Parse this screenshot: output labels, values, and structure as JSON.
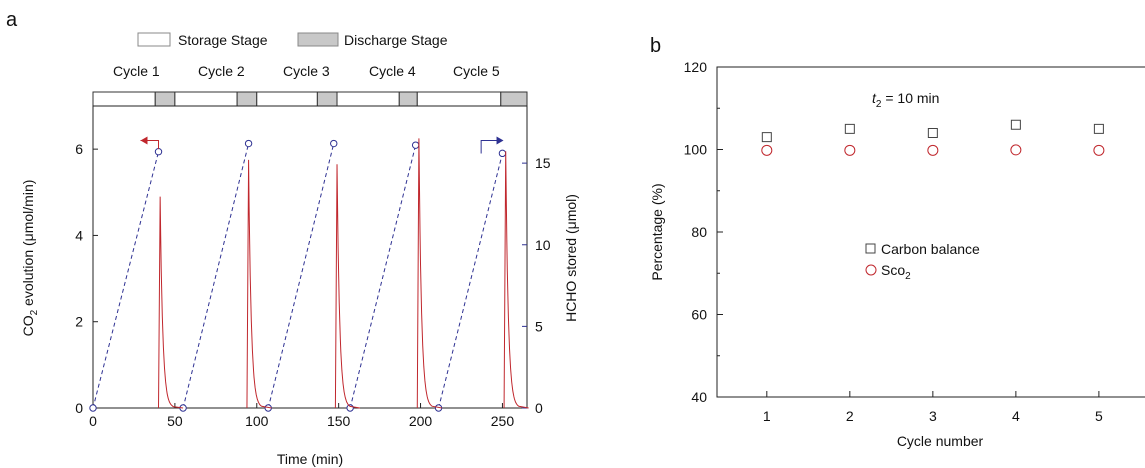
{
  "chart_data": [
    {
      "panel_label": "a",
      "type": "line",
      "xlabel": "Time (min)",
      "ylabel_left": {
        "pre": "CO",
        "sub": "2",
        "post": " evolution (μmol/min)"
      },
      "ylabel_right": "HCHO stored (μmol)",
      "xlim": [
        0,
        265
      ],
      "ylim_left": [
        0,
        7
      ],
      "ylim_right": [
        0,
        18.5
      ],
      "xticks": [
        0,
        50,
        100,
        150,
        200,
        250
      ],
      "yticks_left": [
        0,
        2,
        4,
        6
      ],
      "yticks_right": [
        0,
        5,
        10,
        15
      ],
      "legend": {
        "storage_label": "Storage Stage",
        "discharge_label": "Discharge Stage"
      },
      "cycle_labels": [
        "Cycle 1",
        "Cycle 2",
        "Cycle 3",
        "Cycle 4",
        "Cycle 5"
      ],
      "stages": [
        {
          "kind": "storage",
          "start": 0,
          "end": 38
        },
        {
          "kind": "discharge",
          "start": 38,
          "end": 50
        },
        {
          "kind": "storage",
          "start": 50,
          "end": 88
        },
        {
          "kind": "discharge",
          "start": 88,
          "end": 100
        },
        {
          "kind": "storage",
          "start": 100,
          "end": 137
        },
        {
          "kind": "discharge",
          "start": 137,
          "end": 149
        },
        {
          "kind": "storage",
          "start": 149,
          "end": 187
        },
        {
          "kind": "discharge",
          "start": 187,
          "end": 198
        },
        {
          "kind": "storage",
          "start": 198,
          "end": 249
        },
        {
          "kind": "discharge",
          "start": 249,
          "end": 265
        }
      ],
      "co2_peaks": [
        {
          "t": 41,
          "peak": 4.9,
          "end": 49
        },
        {
          "t": 95,
          "peak": 5.75,
          "end": 103
        },
        {
          "t": 149,
          "peak": 5.65,
          "end": 157
        },
        {
          "t": 199,
          "peak": 6.25,
          "end": 207
        },
        {
          "t": 252,
          "peak": 5.95,
          "end": 260
        }
      ],
      "hcho_series": {
        "name": "HCHO stored",
        "points": [
          [
            0,
            0
          ],
          [
            40,
            15.7
          ],
          [
            55,
            0
          ],
          [
            95,
            16.2
          ],
          [
            107,
            0
          ],
          [
            147,
            16.2
          ],
          [
            157,
            0
          ],
          [
            197,
            16.1
          ],
          [
            211,
            0
          ],
          [
            250,
            15.6
          ]
        ]
      },
      "colors": {
        "co2": "#c0272d",
        "hcho": "#2e3192",
        "discharge_fill": "#c8c8c8"
      }
    },
    {
      "panel_label": "b",
      "type": "scatter",
      "xlabel": "Cycle number",
      "ylabel": "Percentage (%)",
      "xlim": [
        0.4,
        5.7
      ],
      "ylim": [
        40,
        120
      ],
      "xticks": [
        1,
        2,
        3,
        4,
        5
      ],
      "yticks": [
        40,
        60,
        80,
        100,
        120
      ],
      "annotation": {
        "var": "t",
        "sub": "2",
        "rest": " = 10 min"
      },
      "x": [
        1,
        2,
        3,
        4,
        5
      ],
      "series": [
        {
          "name": "Carbon balance",
          "marker": "square",
          "color": "#444444",
          "values": [
            103,
            105,
            104,
            106,
            105
          ]
        },
        {
          "name": {
            "pre": "Sco",
            "sub": "2"
          },
          "marker": "circle",
          "color": "#c0272d",
          "values": [
            99.8,
            99.8,
            99.8,
            99.9,
            99.8
          ]
        }
      ]
    }
  ]
}
